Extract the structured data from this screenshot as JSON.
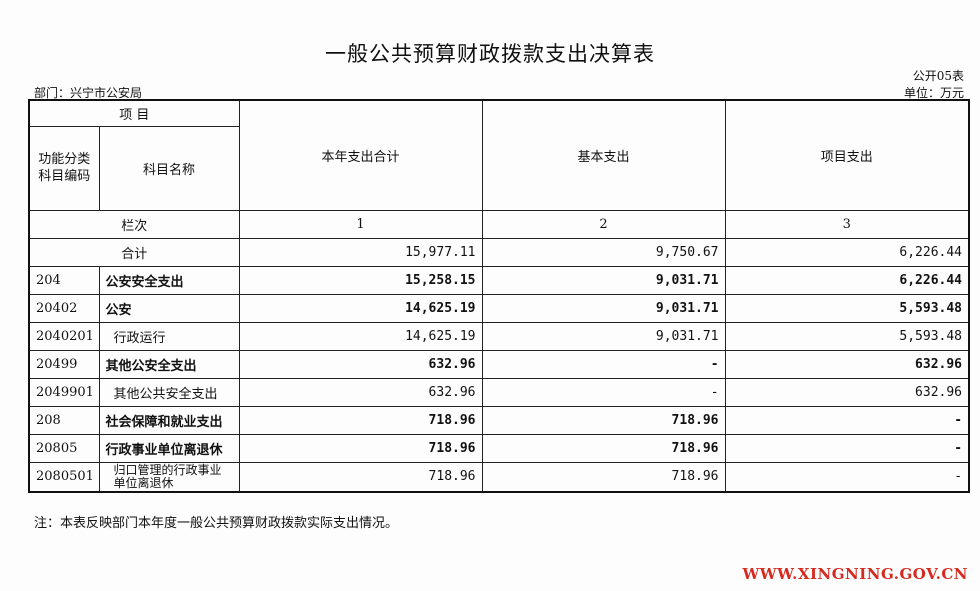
{
  "title": "一般公共预算财政拨款支出决算表",
  "form_code": "公开05表",
  "department": "部门：兴宁市公安局",
  "unit": "单位：万元",
  "headers": {
    "project": "项    目",
    "func_code": "功能分类科目编码",
    "subject_name": "科目名称",
    "col_total": "本年支出合计",
    "col_basic": "基本支出",
    "col_project": "项目支出",
    "row_index_label": "栏次",
    "idx1": "1",
    "idx2": "2",
    "idx3": "3"
  },
  "total_row": {
    "label": "合计",
    "total": "15,977.11",
    "basic": "9,750.67",
    "project": "6,226.44"
  },
  "rows": [
    {
      "code": "204",
      "name": "公安安全支出",
      "total": "15,258.15",
      "basic": "9,031.71",
      "project": "6,226.44"
    },
    {
      "code": "20402",
      "name": "公安",
      "total": "14,625.19",
      "basic": "9,031.71",
      "project": "5,593.48"
    },
    {
      "code": "2040201",
      "name": "行政运行",
      "total": "14,625.19",
      "basic": "9,031.71",
      "project": "5,593.48"
    },
    {
      "code": "20499",
      "name": "其他公安全支出",
      "total": "632.96",
      "basic": "-",
      "project": "632.96"
    },
    {
      "code": "2049901",
      "name": "其他公共安全支出",
      "total": "632.96",
      "basic": "-",
      "project": "632.96"
    },
    {
      "code": "208",
      "name": "社会保障和就业支出",
      "total": "718.96",
      "basic": "718.96",
      "project": "-"
    },
    {
      "code": "20805",
      "name": "行政事业单位离退休",
      "total": "718.96",
      "basic": "718.96",
      "project": "-"
    },
    {
      "code": "2080501",
      "name": "归口管理的行政事业单位离退休",
      "total": "718.96",
      "basic": "718.96",
      "project": "-"
    }
  ],
  "note": "注：本表反映部门本年度一般公共预算财政拨款实际支出情况。",
  "watermark": "WWW.XINGNING.GOV.CN"
}
